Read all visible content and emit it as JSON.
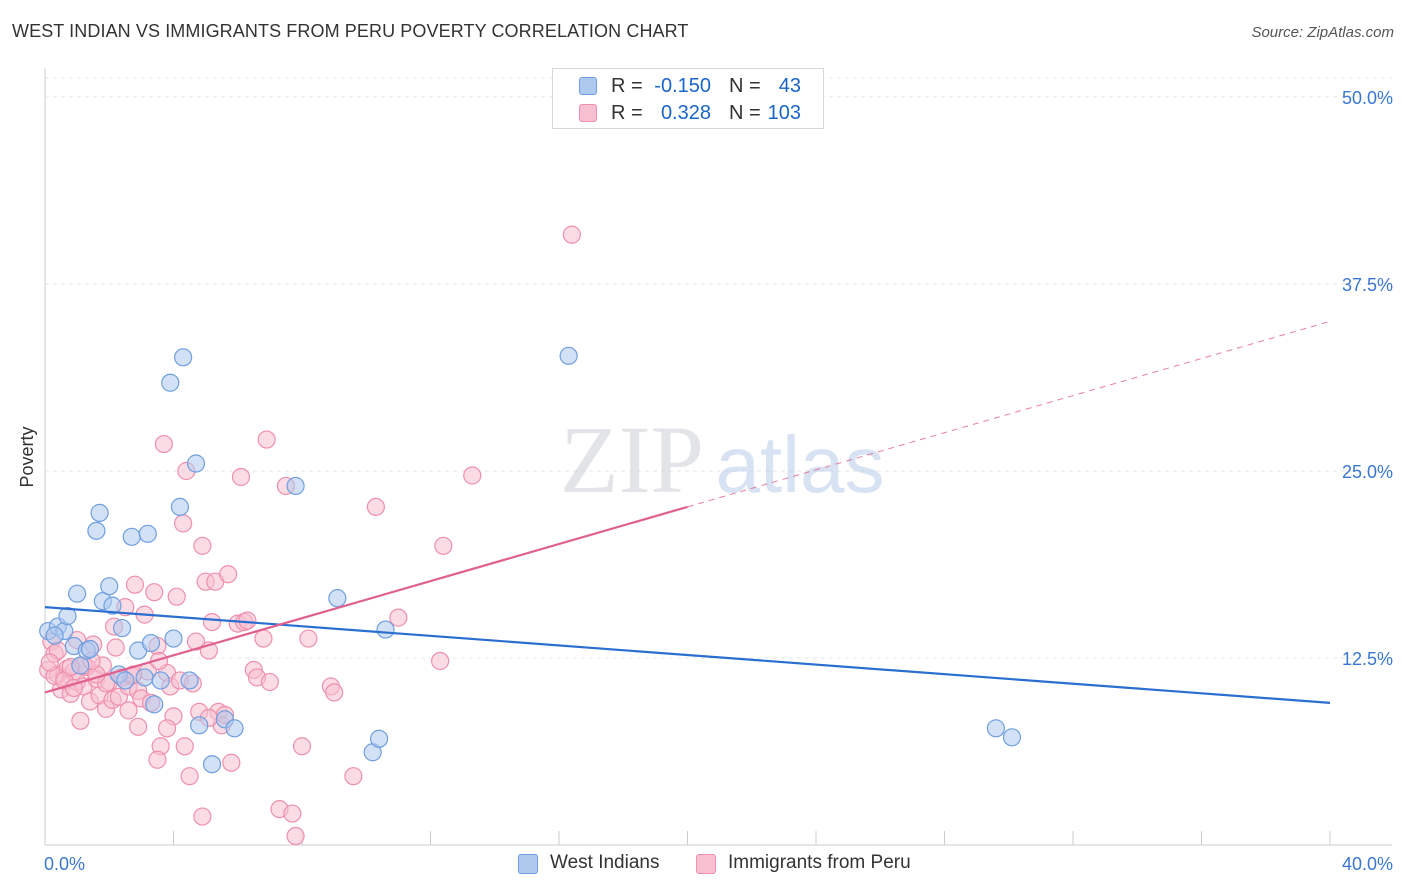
{
  "title": "WEST INDIAN VS IMMIGRANTS FROM PERU POVERTY CORRELATION CHART",
  "source": "Source: ZipAtlas.com",
  "watermark": {
    "zip": "ZIP",
    "atlas": "atlas"
  },
  "legend": {
    "series1": {
      "r_label": "R =",
      "r_value": "-0.150",
      "n_label": "N =",
      "n_value": "43",
      "fill": "#aec9ee",
      "stroke": "#6f9fe0"
    },
    "series2": {
      "r_label": "R =",
      "r_value": "0.328",
      "n_label": "N =",
      "n_value": "103",
      "fill": "#f7bfd0",
      "stroke": "#ee90ad"
    }
  },
  "bottom_legend": {
    "series1": "West Indians",
    "series2": "Immigrants from Peru"
  },
  "chart_data": {
    "type": "scatter",
    "title": "WEST INDIAN VS IMMIGRANTS FROM PERU POVERTY CORRELATION CHART",
    "xlabel": "",
    "ylabel": "Poverty",
    "xlim": [
      0,
      40
    ],
    "ylim": [
      0,
      50
    ],
    "x_tick_labels": {
      "left": "0.0%",
      "right": "40.0%"
    },
    "y_ticks": [
      {
        "value": 12.5,
        "label": "12.5%"
      },
      {
        "value": 25.0,
        "label": "25.0%"
      },
      {
        "value": 37.5,
        "label": "37.5%"
      },
      {
        "value": 50.0,
        "label": "50.0%"
      }
    ],
    "grid": true,
    "series": [
      {
        "name": "West Indians",
        "color": "#6f9fe0",
        "fill": "#aec9ee",
        "trend": {
          "x0": 0,
          "y0": 15.9,
          "x1": 40,
          "y1": 9.5,
          "dashed_from": null
        },
        "points": [
          [
            0.1,
            14.3
          ],
          [
            0.4,
            14.6
          ],
          [
            0.6,
            14.3
          ],
          [
            0.7,
            15.3
          ],
          [
            0.9,
            13.3
          ],
          [
            1.0,
            16.8
          ],
          [
            1.1,
            12.0
          ],
          [
            1.3,
            13.0
          ],
          [
            1.4,
            13.1
          ],
          [
            1.6,
            21.0
          ],
          [
            1.7,
            22.2
          ],
          [
            1.8,
            16.3
          ],
          [
            2.0,
            17.3
          ],
          [
            2.1,
            16.0
          ],
          [
            2.3,
            11.4
          ],
          [
            2.4,
            14.5
          ],
          [
            2.5,
            11.0
          ],
          [
            2.7,
            20.6
          ],
          [
            2.9,
            13.0
          ],
          [
            3.1,
            11.2
          ],
          [
            3.2,
            20.8
          ],
          [
            3.3,
            13.5
          ],
          [
            3.6,
            11.0
          ],
          [
            3.9,
            30.9
          ],
          [
            4.0,
            13.8
          ],
          [
            4.2,
            22.6
          ],
          [
            4.3,
            32.6
          ],
          [
            4.5,
            11.0
          ],
          [
            4.7,
            25.5
          ],
          [
            4.8,
            8.0
          ],
          [
            5.2,
            5.4
          ],
          [
            5.6,
            8.4
          ],
          [
            5.9,
            7.8
          ],
          [
            7.8,
            24.0
          ],
          [
            9.1,
            16.5
          ],
          [
            10.2,
            6.2
          ],
          [
            10.4,
            7.1
          ],
          [
            10.6,
            14.4
          ],
          [
            16.3,
            32.7
          ],
          [
            29.6,
            7.8
          ],
          [
            30.1,
            7.2
          ],
          [
            3.4,
            9.4
          ],
          [
            0.3,
            14.0
          ]
        ]
      },
      {
        "name": "Immigrants from Peru",
        "color": "#ee90ad",
        "fill": "#f7bfd0",
        "trend": {
          "x0": 0,
          "y0": 10.2,
          "x1": 40,
          "y1": 35.0,
          "dashed_from": 20.0
        },
        "points": [
          [
            0.1,
            11.7
          ],
          [
            0.2,
            13.6
          ],
          [
            0.3,
            12.8
          ],
          [
            0.4,
            11.4
          ],
          [
            0.5,
            10.4
          ],
          [
            0.6,
            11.2
          ],
          [
            0.7,
            11.8
          ],
          [
            0.8,
            10.1
          ],
          [
            0.9,
            11.6
          ],
          [
            1.0,
            13.7
          ],
          [
            1.0,
            10.9
          ],
          [
            1.1,
            8.3
          ],
          [
            1.2,
            10.6
          ],
          [
            1.3,
            11.9
          ],
          [
            1.4,
            9.6
          ],
          [
            1.5,
            13.4
          ],
          [
            1.6,
            11.1
          ],
          [
            1.7,
            10.0
          ],
          [
            1.8,
            12.0
          ],
          [
            1.9,
            9.1
          ],
          [
            2.0,
            10.9
          ],
          [
            2.1,
            9.7
          ],
          [
            2.2,
            13.2
          ],
          [
            2.3,
            9.9
          ],
          [
            2.4,
            11.2
          ],
          [
            2.5,
            15.9
          ],
          [
            2.6,
            10.6
          ],
          [
            2.7,
            11.3
          ],
          [
            2.8,
            17.4
          ],
          [
            2.9,
            10.3
          ],
          [
            3.0,
            9.8
          ],
          [
            3.1,
            15.4
          ],
          [
            3.2,
            11.6
          ],
          [
            3.3,
            9.5
          ],
          [
            3.4,
            16.9
          ],
          [
            3.5,
            13.3
          ],
          [
            3.6,
            6.6
          ],
          [
            3.7,
            26.8
          ],
          [
            3.8,
            11.5
          ],
          [
            3.9,
            10.6
          ],
          [
            4.0,
            8.6
          ],
          [
            4.1,
            16.6
          ],
          [
            4.2,
            11.0
          ],
          [
            4.3,
            21.5
          ],
          [
            4.4,
            25.0
          ],
          [
            4.5,
            4.6
          ],
          [
            4.6,
            10.8
          ],
          [
            4.7,
            13.6
          ],
          [
            4.8,
            8.9
          ],
          [
            4.9,
            20.0
          ],
          [
            5.0,
            17.6
          ],
          [
            5.1,
            13.0
          ],
          [
            5.2,
            14.9
          ],
          [
            5.3,
            17.6
          ],
          [
            5.4,
            8.9
          ],
          [
            5.5,
            8.0
          ],
          [
            5.6,
            8.7
          ],
          [
            5.7,
            18.1
          ],
          [
            5.8,
            5.5
          ],
          [
            6.0,
            14.8
          ],
          [
            6.1,
            24.6
          ],
          [
            6.2,
            14.9
          ],
          [
            6.5,
            11.7
          ],
          [
            6.6,
            11.2
          ],
          [
            6.8,
            13.8
          ],
          [
            6.9,
            27.1
          ],
          [
            7.0,
            10.9
          ],
          [
            7.3,
            2.4
          ],
          [
            7.5,
            24.0
          ],
          [
            7.7,
            2.1
          ],
          [
            7.8,
            0.6
          ],
          [
            8.0,
            6.6
          ],
          [
            8.2,
            13.8
          ],
          [
            8.9,
            10.6
          ],
          [
            9.0,
            10.2
          ],
          [
            9.6,
            4.6
          ],
          [
            10.3,
            22.6
          ],
          [
            11.0,
            15.2
          ],
          [
            12.3,
            12.3
          ],
          [
            12.4,
            20.0
          ],
          [
            13.3,
            24.7
          ],
          [
            16.4,
            40.8
          ],
          [
            0.3,
            11.3
          ],
          [
            0.6,
            11.0
          ],
          [
            1.2,
            12.0
          ],
          [
            1.9,
            10.8
          ],
          [
            2.6,
            9.0
          ],
          [
            3.5,
            5.7
          ],
          [
            4.9,
            1.9
          ],
          [
            0.4,
            13.0
          ],
          [
            0.9,
            10.5
          ],
          [
            1.6,
            11.4
          ],
          [
            2.9,
            7.9
          ],
          [
            3.8,
            7.8
          ],
          [
            5.1,
            8.5
          ],
          [
            6.3,
            15.0
          ],
          [
            0.15,
            12.2
          ],
          [
            0.8,
            11.9
          ],
          [
            1.45,
            12.3
          ],
          [
            2.15,
            14.6
          ],
          [
            2.75,
            11.4
          ],
          [
            3.55,
            12.3
          ],
          [
            4.35,
            6.6
          ]
        ]
      }
    ]
  }
}
